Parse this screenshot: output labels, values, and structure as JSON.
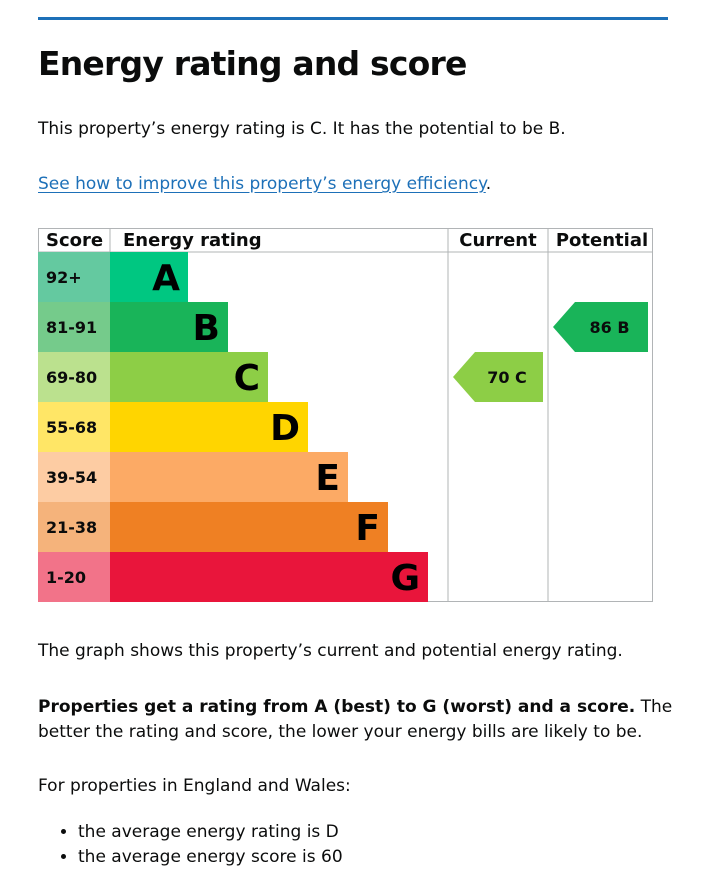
{
  "page": {
    "title": "Energy rating and score",
    "intro": "This property’s energy rating is C. It has the potential to be B.",
    "improve_link": "See how to improve this property’s energy efficiency",
    "improve_link_suffix": ".",
    "graph_note": "The graph shows this property’s current and potential energy rating.",
    "ratings_bold": "Properties get a rating from A (best) to G (worst) and a score.",
    "ratings_rest": " The better the rating and score, the lower your energy bills are likely to be.",
    "region_intro": "For properties in England and Wales:",
    "averages": [
      "the average energy rating is D",
      "the average energy score is 60"
    ],
    "accent_color": "#1d70b8"
  },
  "chart_data": {
    "type": "table",
    "headers": {
      "score": "Score",
      "rating": "Energy rating",
      "current": "Current",
      "potential": "Potential"
    },
    "bands": [
      {
        "letter": "A",
        "range": "92+",
        "min": 92,
        "color": "#00c781",
        "score_bg": "#64c9a0"
      },
      {
        "letter": "B",
        "range": "81-91",
        "min": 81,
        "color": "#19b459",
        "score_bg": "#75cb8b"
      },
      {
        "letter": "C",
        "range": "69-80",
        "min": 69,
        "color": "#8dce46",
        "score_bg": "#bbe18e"
      },
      {
        "letter": "D",
        "range": "55-68",
        "min": 55,
        "color": "#ffd500",
        "score_bg": "#ffe666"
      },
      {
        "letter": "E",
        "range": "39-54",
        "min": 39,
        "color": "#fcaa65",
        "score_bg": "#fdcca3"
      },
      {
        "letter": "F",
        "range": "21-38",
        "min": 21,
        "color": "#ef8023",
        "score_bg": "#f5b37b"
      },
      {
        "letter": "G",
        "range": "1-20",
        "min": 1,
        "color": "#e9153b",
        "score_bg": "#f27389"
      }
    ],
    "current": {
      "score": 70,
      "band": "C",
      "label": "70  C",
      "color": "#8dce46"
    },
    "potential": {
      "score": 86,
      "band": "B",
      "label": "86  B",
      "color": "#19b459"
    }
  }
}
